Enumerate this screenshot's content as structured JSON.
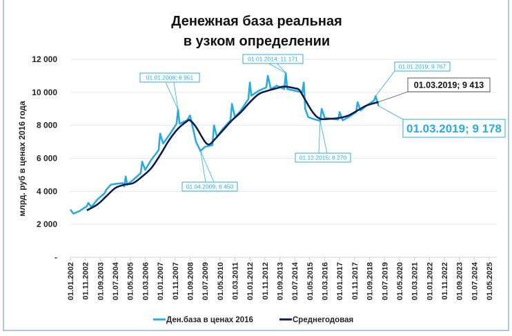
{
  "chart_data": {
    "type": "line",
    "title": [
      "Денежная база реальная",
      "в узком определении"
    ],
    "ylabel": "млрд. руб  в ценах 2016 года",
    "xlabel": "",
    "ylim": [
      0,
      12000
    ],
    "yticks": [
      0,
      2000,
      4000,
      6000,
      8000,
      10000,
      12000
    ],
    "ytick_labels": [
      "-",
      "2 000",
      "4 000",
      "6 000",
      "8 000",
      "10 000",
      "12 000"
    ],
    "xlim": [
      "01.01.2002",
      "01.05.2025"
    ],
    "xtick_labels": [
      "01.01.2002",
      "01.11.2002",
      "01.09.2003",
      "01.07.2004",
      "01.05.2005",
      "01.03.2006",
      "01.01.2007",
      "01.11.2007",
      "01.09.2008",
      "01.07.2009",
      "01.05.2010",
      "01.03.2011",
      "01.01.2012",
      "01.11.2012",
      "01.09.2013",
      "01.07.2014",
      "01.05.2015",
      "01.03.2016",
      "01.01.2017",
      "01.11.2017",
      "01.09.2018",
      "01.07.2019",
      "01.05.2020",
      "01.03.2021",
      "01.01.2022",
      "01.11.2022",
      "01.09.2023",
      "01.07.2024",
      "01.05.2025"
    ],
    "grid": "horizontal",
    "legend": "bottom",
    "series": [
      {
        "name": "Ден.база в ценах 2016",
        "color": "#29abe2",
        "points": [
          [
            "01.01.2002",
            2900
          ],
          [
            "01.03.2002",
            2650
          ],
          [
            "01.07.2002",
            2800
          ],
          [
            "01.12.2002",
            3100
          ],
          [
            "01.01.2003",
            3300
          ],
          [
            "01.03.2003",
            3050
          ],
          [
            "01.07.2003",
            3500
          ],
          [
            "01.12.2003",
            3900
          ],
          [
            "01.01.2004",
            4100
          ],
          [
            "01.04.2004",
            4400
          ],
          [
            "01.07.2004",
            4450
          ],
          [
            "01.12.2004",
            4500
          ],
          [
            "01.01.2005",
            4300
          ],
          [
            "01.02.2005",
            4900
          ],
          [
            "01.03.2005",
            4400
          ],
          [
            "01.07.2005",
            4700
          ],
          [
            "01.12.2005",
            5100
          ],
          [
            "01.01.2006",
            5800
          ],
          [
            "01.03.2006",
            5300
          ],
          [
            "01.07.2006",
            5900
          ],
          [
            "01.12.2006",
            6500
          ],
          [
            "01.01.2007",
            7500
          ],
          [
            "01.03.2007",
            6900
          ],
          [
            "01.07.2007",
            7400
          ],
          [
            "01.12.2007",
            8100
          ],
          [
            "01.01.2008",
            8951
          ],
          [
            "01.02.2008",
            8100
          ],
          [
            "01.07.2008",
            8300
          ],
          [
            "01.09.2008",
            8600
          ],
          [
            "01.11.2008",
            7800
          ],
          [
            "01.01.2009",
            7000
          ],
          [
            "01.04.2009",
            6450
          ],
          [
            "01.07.2009",
            6700
          ],
          [
            "01.12.2009",
            6800
          ],
          [
            "01.01.2010",
            8000
          ],
          [
            "01.03.2010",
            7300
          ],
          [
            "01.07.2010",
            7800
          ],
          [
            "01.12.2010",
            8300
          ],
          [
            "01.01.2011",
            9300
          ],
          [
            "01.03.2011",
            8500
          ],
          [
            "01.07.2011",
            8900
          ],
          [
            "01.12.2011",
            9600
          ],
          [
            "01.01.2012",
            10600
          ],
          [
            "01.02.2012",
            9800
          ],
          [
            "01.07.2012",
            10100
          ],
          [
            "01.12.2012",
            10300
          ],
          [
            "01.01.2013",
            11000
          ],
          [
            "01.03.2013",
            10200
          ],
          [
            "01.07.2013",
            10400
          ],
          [
            "01.12.2013",
            10200
          ],
          [
            "01.01.2014",
            11171
          ],
          [
            "01.02.2014",
            10200
          ],
          [
            "01.07.2014",
            10100
          ],
          [
            "01.12.2014",
            10000
          ],
          [
            "01.01.2015",
            10600
          ],
          [
            "01.02.2015",
            9000
          ],
          [
            "01.04.2015",
            8500
          ],
          [
            "01.07.2015",
            8400
          ],
          [
            "01.12.2015",
            8270
          ],
          [
            "01.01.2016",
            9000
          ],
          [
            "01.03.2016",
            8450
          ],
          [
            "01.07.2016",
            8400
          ],
          [
            "01.12.2016",
            8350
          ],
          [
            "01.01.2017",
            8800
          ],
          [
            "01.03.2017",
            8300
          ],
          [
            "01.07.2017",
            8500
          ],
          [
            "01.12.2017",
            8800
          ],
          [
            "01.01.2018",
            9400
          ],
          [
            "01.03.2018",
            8900
          ],
          [
            "01.07.2018",
            9200
          ],
          [
            "01.12.2018",
            9500
          ],
          [
            "01.01.2019",
            9767
          ],
          [
            "01.02.2019",
            9500
          ],
          [
            "01.03.2019",
            9178
          ]
        ]
      },
      {
        "name": "Среднегодовая",
        "color": "#0d1a4f",
        "points": [
          [
            "01.12.2002",
            2850
          ],
          [
            "01.07.2003",
            3200
          ],
          [
            "01.01.2004",
            3700
          ],
          [
            "01.07.2004",
            4200
          ],
          [
            "01.01.2005",
            4400
          ],
          [
            "01.07.2005",
            4500
          ],
          [
            "01.01.2006",
            4900
          ],
          [
            "01.07.2006",
            5400
          ],
          [
            "01.01.2007",
            6200
          ],
          [
            "01.07.2007",
            7100
          ],
          [
            "01.01.2008",
            7800
          ],
          [
            "01.07.2008",
            8250
          ],
          [
            "01.09.2008",
            8300
          ],
          [
            "01.01.2009",
            7900
          ],
          [
            "01.07.2009",
            7000
          ],
          [
            "01.10.2009",
            6850
          ],
          [
            "01.01.2010",
            7100
          ],
          [
            "01.07.2010",
            7700
          ],
          [
            "01.01.2011",
            8300
          ],
          [
            "01.07.2011",
            8800
          ],
          [
            "01.01.2012",
            9400
          ],
          [
            "01.07.2012",
            9900
          ],
          [
            "01.01.2013",
            10100
          ],
          [
            "01.07.2013",
            10250
          ],
          [
            "01.12.2013",
            10350
          ],
          [
            "01.07.2014",
            10250
          ],
          [
            "01.10.2014",
            10150
          ],
          [
            "01.01.2015",
            9700
          ],
          [
            "01.07.2015",
            8800
          ],
          [
            "01.12.2015",
            8400
          ],
          [
            "01.07.2016",
            8400
          ],
          [
            "01.01.2017",
            8450
          ],
          [
            "01.07.2017",
            8600
          ],
          [
            "01.01.2018",
            8900
          ],
          [
            "01.07.2018",
            9200
          ],
          [
            "01.03.2019",
            9413
          ]
        ]
      }
    ],
    "annotations": [
      {
        "text": "01.01.2008; 8 951",
        "series": 0,
        "date": "01.01.2008",
        "style": "small"
      },
      {
        "text": "01.04.2009; 6 450",
        "series": 0,
        "date": "01.04.2009",
        "style": "small"
      },
      {
        "text": "01.01.2014; 11 171",
        "series": 0,
        "date": "01.01.2014",
        "style": "small"
      },
      {
        "text": "01.12.2015; 8 270",
        "series": 0,
        "date": "01.12.2015",
        "style": "small"
      },
      {
        "text": "01.01.2019; 9 767",
        "series": 0,
        "date": "01.01.2019",
        "style": "small"
      },
      {
        "text": "01.03.2019;  9 413",
        "series": 1,
        "date": "01.03.2019",
        "style": "dark"
      },
      {
        "text": "01.03.2019; 9 178",
        "series": 0,
        "date": "01.03.2019",
        "style": "large"
      }
    ]
  }
}
